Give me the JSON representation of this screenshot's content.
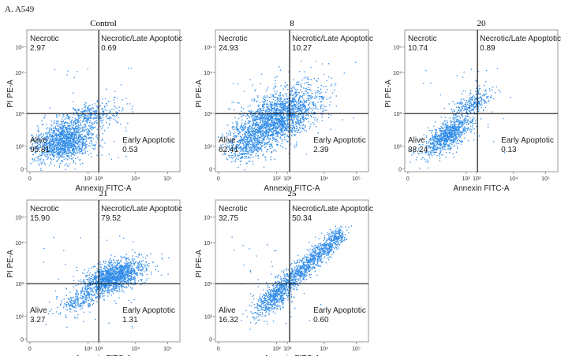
{
  "figure_label": "A. A549",
  "colors": {
    "points": "#2e8be8",
    "frame": "#9a9a9a",
    "gate": "#111111"
  },
  "chart_data": [
    {
      "type": "scatter",
      "title": "Control",
      "xlabel": "Annexin FITC-A",
      "ylabel": "PI PE-A",
      "x_ticks": [
        "0",
        "10²",
        "10³",
        "10⁴",
        "10⁵"
      ],
      "y_ticks": [
        "0",
        "10²",
        "10³",
        "10⁴",
        "10⁵"
      ],
      "quadrants": [
        {
          "label": "Necrotic",
          "value": "2.97"
        },
        {
          "label": "Necrotic/Late Apoptotic",
          "value": "0.69"
        },
        {
          "label": "Alive",
          "value": "95.81"
        },
        {
          "label": "Early Apoptotic",
          "value": "0.53"
        }
      ]
    },
    {
      "type": "scatter",
      "title": "8",
      "xlabel": "Annexin FITC-A",
      "ylabel": "PI PE-A",
      "x_ticks": [
        "0",
        "10²",
        "10³",
        "10⁴",
        "10⁵"
      ],
      "y_ticks": [
        "0",
        "10²",
        "10³",
        "10⁴",
        "10⁵"
      ],
      "quadrants": [
        {
          "label": "Necrotic",
          "value": "24.93"
        },
        {
          "label": "Necrotic/Late Apoptotic",
          "value": "10.27"
        },
        {
          "label": "Alive",
          "value": "62.41"
        },
        {
          "label": "Early Apoptotic",
          "value": "2.39"
        }
      ]
    },
    {
      "type": "scatter",
      "title": "20",
      "xlabel": "Annexin FITC-A",
      "ylabel": "PI PE-A",
      "x_ticks": [
        "0",
        "10²",
        "10³",
        "10⁴",
        "10⁵"
      ],
      "y_ticks": [
        "0",
        "10²",
        "10³",
        "10⁴",
        "10⁵"
      ],
      "quadrants": [
        {
          "label": "Necrotic",
          "value": "10.74"
        },
        {
          "label": "Necrotic/Late Apoptotic",
          "value": "0.89"
        },
        {
          "label": "Alive",
          "value": "88.24"
        },
        {
          "label": "Early Apoptotic",
          "value": "0.13"
        }
      ]
    },
    {
      "type": "scatter",
      "title": "21",
      "xlabel": "Annexin FITC-A",
      "ylabel": "PI PE-A",
      "x_ticks": [
        "0",
        "10²",
        "10³",
        "10⁴",
        "10⁵"
      ],
      "y_ticks": [
        "0",
        "10²",
        "10³",
        "10⁴",
        "10⁵"
      ],
      "quadrants": [
        {
          "label": "Necrotic",
          "value": "15.90"
        },
        {
          "label": "Necrotic/Late Apoptotic",
          "value": "79.52"
        },
        {
          "label": "Alive",
          "value": "3.27"
        },
        {
          "label": "Early Apoptotic",
          "value": "1.31"
        }
      ]
    },
    {
      "type": "scatter",
      "title": "25",
      "xlabel": "Annexin FITC-A",
      "ylabel": "PI PE-A",
      "x_ticks": [
        "0",
        "10²",
        "10³",
        "10⁴",
        "10⁵"
      ],
      "y_ticks": [
        "0",
        "10²",
        "10³",
        "10⁴",
        "10⁵"
      ],
      "quadrants": [
        {
          "label": "Necrotic",
          "value": "32.75"
        },
        {
          "label": "Necrotic/Late Apoptotic",
          "value": "50.34"
        },
        {
          "label": "Alive",
          "value": "16.32"
        },
        {
          "label": "Early Apoptotic",
          "value": "0.60"
        }
      ]
    }
  ]
}
